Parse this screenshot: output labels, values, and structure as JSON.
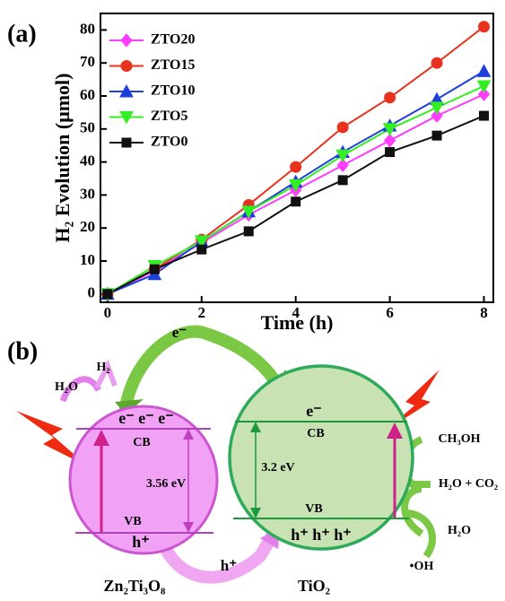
{
  "chart_data": {
    "type": "line",
    "panel_label": "(a)",
    "x_label": "Time (h)",
    "y_label": "H₂ Evolution (μmol)",
    "x": [
      0,
      1,
      2,
      3,
      4,
      5,
      6,
      7,
      8
    ],
    "series": [
      {
        "name": "ZTO20",
        "color": "#ff3cff",
        "marker": "diamond",
        "values": [
          0,
          7,
          15.5,
          24,
          31.5,
          39,
          46.5,
          54,
          60.5
        ]
      },
      {
        "name": "ZTO15",
        "color": "#e8321e",
        "marker": "circle",
        "values": [
          0,
          7.5,
          16.5,
          27,
          38.5,
          50.5,
          59.5,
          70,
          81
        ]
      },
      {
        "name": "ZTO10",
        "color": "#1f3fdc",
        "marker": "triangle-up",
        "values": [
          0,
          6,
          16,
          25,
          34,
          43,
          51,
          59,
          67.5
        ]
      },
      {
        "name": "ZTO5",
        "color": "#33ee22",
        "marker": "triangle-down",
        "values": [
          0,
          8.5,
          16,
          25,
          33,
          42,
          50,
          56.5,
          63
        ]
      },
      {
        "name": "ZTO0",
        "color": "#111111",
        "marker": "square",
        "values": [
          0,
          7.5,
          13.5,
          19,
          28,
          34.5,
          43,
          48,
          54
        ]
      }
    ],
    "xlim": [
      -0.15,
      8.2
    ],
    "ylim": [
      -2.5,
      85
    ],
    "xticks": [
      0,
      2,
      4,
      6,
      8
    ],
    "yticks": [
      0,
      10,
      20,
      30,
      40,
      50,
      60,
      70,
      80
    ],
    "legend": "upper left"
  },
  "diagram": {
    "panel_label": "(b)",
    "left": {
      "name": "Zn₂Ti₃O₈",
      "cb_electrons": "e⁻ e⁻ e⁻",
      "cb": "CB",
      "gap": "3.56 eV",
      "vb": "VB",
      "vb_hole": "h⁺"
    },
    "right": {
      "name": "TiO₂",
      "cb_electron": "e⁻",
      "cb": "CB",
      "gap": "3.2 eV",
      "vb": "VB",
      "vb_holes": "h⁺ h⁺ h⁺"
    },
    "transfer_electron": "e⁻",
    "transfer_hole": "h⁺",
    "reduction": {
      "reactant": "H₂O",
      "product": "H₂"
    },
    "oxidation": {
      "reactant": "CH₃OH",
      "products": "H₂O + CO₂",
      "water": "H₂O",
      "radical": "•OH"
    }
  }
}
